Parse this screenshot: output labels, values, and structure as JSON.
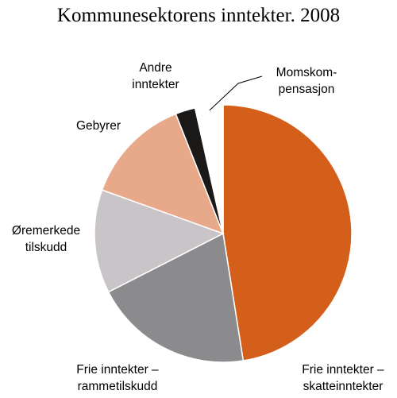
{
  "chart_data": {
    "type": "pie",
    "title": "Kommunesektorens inntekter. 2008",
    "slices": [
      {
        "label_lines": [
          "Frie inntekter –",
          "skatteinntekter"
        ],
        "value": 47.5,
        "color": "#d35f1b"
      },
      {
        "label_lines": [
          "Frie inntekter –",
          "rammetilskudd"
        ],
        "value": 20.0,
        "color": "#8b8a8c"
      },
      {
        "label_lines": [
          "Øremerkede",
          "tilskudd"
        ],
        "value": 13.0,
        "color": "#c9c4c8"
      },
      {
        "label_lines": [
          "Gebyrer"
        ],
        "value": 13.5,
        "color": "#e8a98a"
      },
      {
        "label_lines": [
          "Andre",
          "inntekter"
        ],
        "value": 2.5,
        "color": "#1a1917"
      },
      {
        "label_lines": [
          "Momskom-",
          "pensasjon"
        ],
        "value": 3.5,
        "color": "#ffffff"
      }
    ],
    "start_angle_deg": 0,
    "direction": "clockwise",
    "legend": "none",
    "grid": false
  }
}
